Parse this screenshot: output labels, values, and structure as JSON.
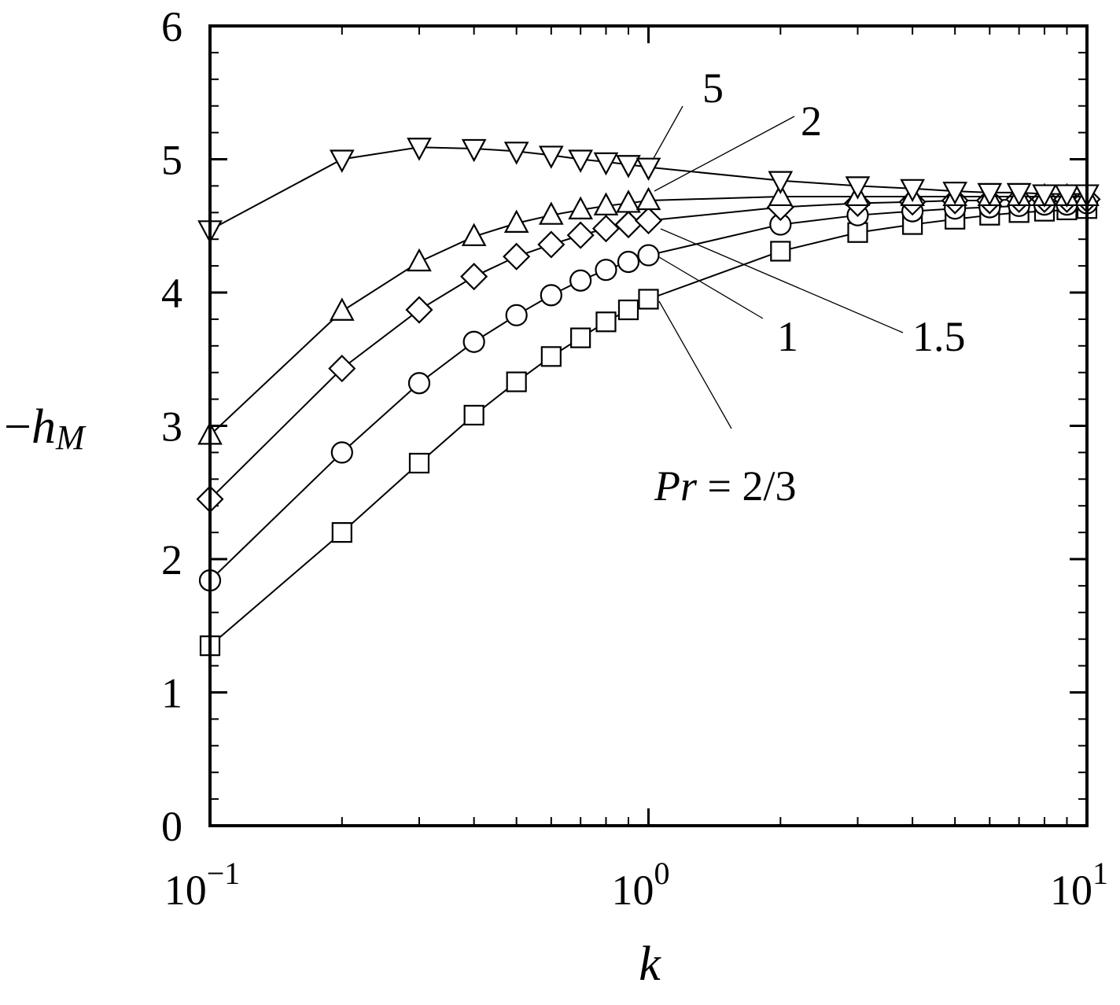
{
  "chart_data": {
    "type": "line",
    "xscale": "log",
    "xlim": [
      0.1,
      10
    ],
    "ylim": [
      0,
      6
    ],
    "xlabel": "k",
    "ylabel": {
      "sign": "−",
      "main": "h",
      "sub": "M"
    },
    "x_ticks": [
      {
        "value": 0.1,
        "base": "10",
        "exp": "−1"
      },
      {
        "value": 1,
        "base": "10",
        "exp": "0"
      },
      {
        "value": 10,
        "base": "10",
        "exp": "1"
      }
    ],
    "y_ticks": [
      0,
      1,
      2,
      3,
      4,
      5,
      6
    ],
    "grid": false,
    "legend": "none",
    "x": [
      0.1,
      0.2,
      0.3,
      0.4,
      0.5,
      0.6,
      0.7,
      0.8,
      0.9,
      1,
      2,
      3,
      4,
      5,
      6,
      7,
      8,
      9,
      10
    ],
    "series": [
      {
        "marker": "square",
        "label_text": "Pr = 2/3",
        "values": [
          1.35,
          2.2,
          2.72,
          3.08,
          3.33,
          3.52,
          3.66,
          3.78,
          3.87,
          3.95,
          4.31,
          4.45,
          4.51,
          4.55,
          4.58,
          4.6,
          4.61,
          4.62,
          4.63
        ]
      },
      {
        "marker": "circle",
        "label_text": "1",
        "values": [
          1.84,
          2.8,
          3.32,
          3.63,
          3.83,
          3.98,
          4.09,
          4.17,
          4.23,
          4.28,
          4.51,
          4.58,
          4.61,
          4.63,
          4.64,
          4.65,
          4.66,
          4.66,
          4.67
        ]
      },
      {
        "marker": "diamond",
        "label_text": "1.5",
        "values": [
          2.45,
          3.43,
          3.87,
          4.12,
          4.27,
          4.36,
          4.43,
          4.48,
          4.51,
          4.54,
          4.64,
          4.67,
          4.68,
          4.69,
          4.69,
          4.7,
          4.7,
          4.7,
          4.7
        ]
      },
      {
        "marker": "triangle-up",
        "label_text": "2",
        "values": [
          2.93,
          3.86,
          4.23,
          4.42,
          4.52,
          4.58,
          4.62,
          4.65,
          4.67,
          4.69,
          4.72,
          4.72,
          4.72,
          4.72,
          4.72,
          4.72,
          4.72,
          4.72,
          4.72
        ]
      },
      {
        "marker": "triangle-down",
        "label_text": "5",
        "values": [
          4.47,
          5.0,
          5.09,
          5.08,
          5.06,
          5.03,
          5.0,
          4.98,
          4.96,
          4.94,
          4.84,
          4.8,
          4.78,
          4.76,
          4.75,
          4.75,
          4.74,
          4.74,
          4.74
        ]
      }
    ]
  }
}
